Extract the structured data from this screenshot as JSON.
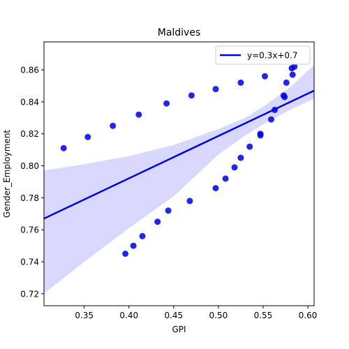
{
  "chart_data": {
    "type": "scatter",
    "title": "Maldives",
    "xlabel": "GPI",
    "ylabel": "Gender_Employment",
    "xlim": [
      0.305,
      0.607
    ],
    "ylim": [
      0.7125,
      0.8775
    ],
    "xticks": [
      0.35,
      0.4,
      0.45,
      0.5,
      0.55,
      0.6
    ],
    "xtick_labels": [
      "0.35",
      "0.40",
      "0.45",
      "0.50",
      "0.55",
      "0.60"
    ],
    "yticks": [
      0.72,
      0.74,
      0.76,
      0.78,
      0.8,
      0.82,
      0.84,
      0.86
    ],
    "ytick_labels": [
      "0.72",
      "0.74",
      "0.76",
      "0.78",
      "0.80",
      "0.82",
      "0.84",
      "0.86"
    ],
    "grid": false,
    "legend": {
      "placement": "top-right",
      "entries": [
        "y=0.3x+0.7"
      ]
    },
    "points": [
      [
        0.327,
        0.811
      ],
      [
        0.354,
        0.818
      ],
      [
        0.382,
        0.825
      ],
      [
        0.411,
        0.832
      ],
      [
        0.442,
        0.839
      ],
      [
        0.47,
        0.844
      ],
      [
        0.497,
        0.848
      ],
      [
        0.525,
        0.852
      ],
      [
        0.552,
        0.856
      ],
      [
        0.576,
        0.852
      ],
      [
        0.582,
        0.861
      ],
      [
        0.585,
        0.862
      ],
      [
        0.583,
        0.857
      ],
      [
        0.573,
        0.844
      ],
      [
        0.574,
        0.843
      ],
      [
        0.563,
        0.835
      ],
      [
        0.559,
        0.829
      ],
      [
        0.547,
        0.82
      ],
      [
        0.547,
        0.819
      ],
      [
        0.535,
        0.812
      ],
      [
        0.525,
        0.805
      ],
      [
        0.518,
        0.799
      ],
      [
        0.508,
        0.792
      ],
      [
        0.497,
        0.786
      ],
      [
        0.468,
        0.778
      ],
      [
        0.444,
        0.772
      ],
      [
        0.432,
        0.765
      ],
      [
        0.415,
        0.756
      ],
      [
        0.405,
        0.75
      ],
      [
        0.396,
        0.745
      ]
    ],
    "regression": {
      "x": [
        0.305,
        0.607
      ],
      "y": [
        0.767,
        0.847
      ]
    },
    "confidence_band": {
      "x": [
        0.305,
        0.35,
        0.4,
        0.45,
        0.5,
        0.53,
        0.55,
        0.58,
        0.607
      ],
      "upper": [
        0.797,
        0.801,
        0.806,
        0.813,
        0.823,
        0.83,
        0.837,
        0.849,
        0.863
      ],
      "lower": [
        0.72,
        0.74,
        0.761,
        0.781,
        0.807,
        0.819,
        0.826,
        0.835,
        0.842
      ]
    },
    "colors": {
      "points": "#0000dd",
      "line": "#0000dd",
      "band": "#d8d8ff"
    }
  }
}
